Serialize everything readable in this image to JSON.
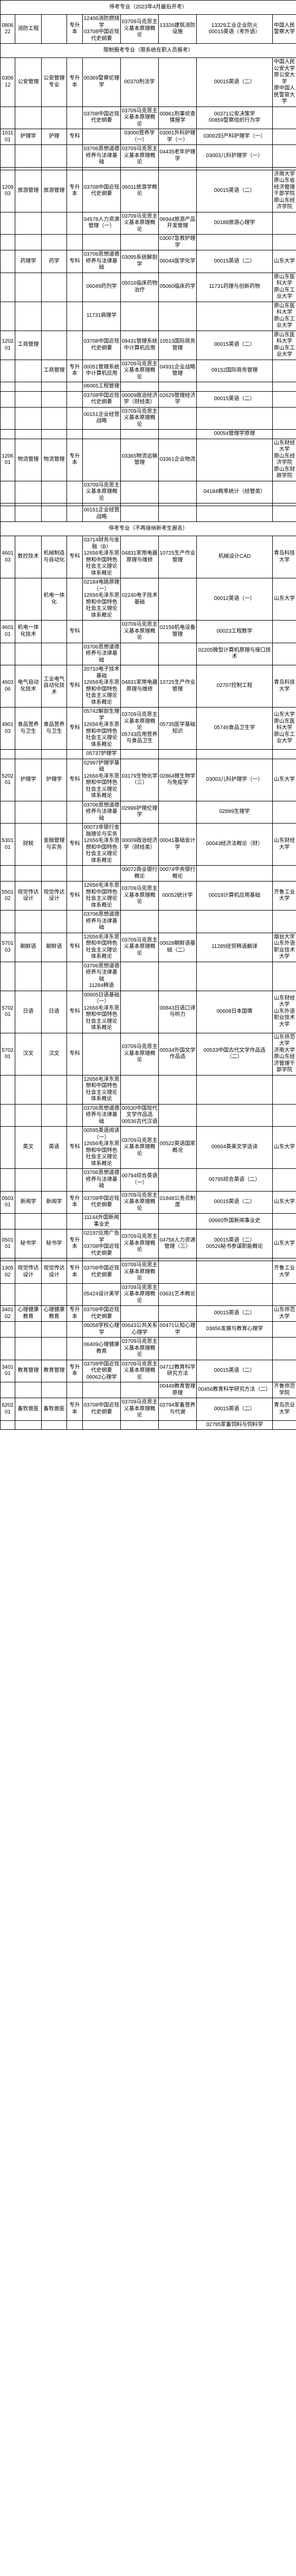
{
  "section1_title": "停考专业（2023年4月最后开考）",
  "section2_title": "限制报考专业（限系统在职人员报考）",
  "section3_title": "停考专业（不再接纳新考生报名）",
  "rows_a": [
    {
      "code": "080622",
      "name": "消防工程",
      "cat": "",
      "lvl": "专升本",
      "c4": "12406消防燃烧学\n03708中国近现代史纲要",
      "c5": "03709马克思主义基本原理概论",
      "c6": "13326建筑消防设施",
      "c7": "13329工业企业防火\n00015英语（考外语）",
      "school": "中国人民警察大学"
    }
  ],
  "rows_b": [
    {
      "code": "030612",
      "name": "公安管理",
      "cat": "公安管理专业",
      "lvl": "专升本",
      "c4": "00369警察伦理学",
      "c5": "00370刑法学",
      "c6": "",
      "c7": "00015英语（二）",
      "school": "中国人民公安大学\n原公安大学\n原中国人民警官大学"
    },
    {
      "code": "",
      "name": "",
      "cat": "",
      "lvl": "",
      "c4": "03708中国近现代史纲要",
      "c5": "03709马克思主义基本原理概论",
      "c6": "00861刑事侦查情报学",
      "c7": "00371公安决策学\n00859警察组织行为学",
      "school": ""
    },
    {
      "code": "101101",
      "name": "护理学",
      "cat": "护理",
      "lvl": "专科",
      "c4": "",
      "c5": "03000营养学（一）",
      "c6": "03001外科护理学（一）",
      "c7": "03002妇产科护理学（一）",
      "school": ""
    },
    {
      "code": "",
      "name": "",
      "cat": "",
      "lvl": "",
      "c4": "03706思想道德修养与法律基础",
      "c5": "03709马克思主义基本原理概论",
      "c6": "04435老年护理学",
      "c7": "03003儿科护理学（一）",
      "school": ""
    },
    {
      "code": "",
      "name": "",
      "cat": "",
      "lvl": "",
      "c4": "",
      "c5": "",
      "c6": "",
      "c7": "",
      "school": ""
    },
    {
      "code": "120903",
      "name": "旅游管理",
      "cat": "旅游管理",
      "lvl": "专升本",
      "c4": "03708中国近现代史纲要",
      "c5": "06011旅游学概论",
      "c6": "",
      "c7": "00015英语（二）",
      "school": "济南大学\n原山东省经济管理干部学院\n原山东经济学院"
    },
    {
      "code": "",
      "name": "",
      "cat": "",
      "lvl": "",
      "c4": "04578人力资源管理（一）",
      "c5": "03709马克思主义基本原理概论",
      "c6": "06944旅游产品开发管理",
      "c7": "00188旅游心理学",
      "school": ""
    },
    {
      "code": "",
      "name": "",
      "cat": "",
      "lvl": "",
      "c4": "",
      "c5": "",
      "c6": "03007急救护理学",
      "c7": "",
      "school": ""
    },
    {
      "code": "",
      "name": "药理学",
      "cat": "药学",
      "lvl": "专科",
      "c4": "03706思想道德修养与法律基础",
      "c5": "03095系统解剖学",
      "c6": "06044医学化学",
      "c7": "00015英语（二）",
      "school": "山东大学"
    },
    {
      "code": "",
      "name": "",
      "cat": "",
      "lvl": "",
      "c4": "06049药剂学",
      "c5": "05016临床药物治疗",
      "c6": "05060临床药学",
      "c7": "11731药理与创新药物",
      "school": "原山东医科大学\n原山东工业大学"
    },
    {
      "code": "",
      "name": "",
      "cat": "",
      "lvl": "",
      "c4": "11731病理学",
      "c5": "",
      "c6": "",
      "c7": "",
      "school": "原山东医科大学\n原山东工业大学"
    },
    {
      "code": "120201",
      "name": "工商管理",
      "cat": "",
      "lvl": "",
      "c4": "03708中国近现代史纲要",
      "c5": "09431管理系统中计算机应用",
      "c6": "10513国际商务管理",
      "c7": "00015英语（二）",
      "school": "原山东医科大学\n原山东工业大学"
    },
    {
      "code": "",
      "name": "",
      "cat": "工商管理",
      "lvl": "专升本",
      "c4": "00051管理系统中计算机应用",
      "c5": "03709马克思主义基本原理概论",
      "c6": "04931企业战略管理",
      "c7": "09152国际商务管理",
      "school": ""
    },
    {
      "code": "",
      "name": "",
      "cat": "",
      "lvl": "",
      "c4": "06065工程管理",
      "c5": "",
      "c6": "",
      "c7": "",
      "school": ""
    },
    {
      "code": "",
      "name": "",
      "cat": "",
      "lvl": "",
      "c4": "03708中国近现代史纲要",
      "c5": "00009政治经济学（财经类）",
      "c6": "02629管理经济学",
      "c7": "00015英语（二）",
      "school": ""
    },
    {
      "code": "",
      "name": "",
      "cat": "",
      "lvl": "",
      "c4": "00151企业经营战略",
      "c5": "03709马克思主义基本原理概论",
      "c6": "",
      "c7": "",
      "school": ""
    },
    {
      "code": "",
      "name": "",
      "cat": "",
      "lvl": "",
      "c4": "",
      "c5": "",
      "c6": "",
      "c7": "00054管理学原理",
      "school": ""
    },
    {
      "code": "120601",
      "name": "物流管理",
      "cat": "物流管理",
      "lvl": "专升本",
      "c4": "",
      "c5": "03365物流运输管理",
      "c6": "03361企业物流",
      "c7": "",
      "school": "山东财经大学\n原山东经济学院\n原山东财政学院"
    },
    {
      "code": "",
      "name": "",
      "cat": "",
      "lvl": "",
      "c4": "03709马克思主义基本原理概论",
      "c5": "",
      "c6": "",
      "c7": "04184概率统计（经管类）",
      "school": ""
    },
    {
      "code": "",
      "name": "",
      "cat": "",
      "lvl": "",
      "c4": "",
      "c5": "",
      "c6": "",
      "c7": "",
      "school": ""
    },
    {
      "code": "",
      "name": "",
      "cat": "",
      "lvl": "",
      "c4": "00151企业经营战略",
      "c5": "",
      "c6": "",
      "c7": "",
      "school": ""
    }
  ],
  "rows_c": [
    {
      "code": "460103",
      "name": "数控技术",
      "cat": "机械制造与自动化",
      "lvl": "专科",
      "c4": "03714财务与金融（B）\n12656毛泽东思想和中国特色社会主义理论体系概论",
      "c5": "04831家用电器原理与维修",
      "c6": "10725生产作业管理",
      "c7": "机械设计CAD",
      "school": "青岛科技大学"
    },
    {
      "code": "",
      "name": "",
      "cat": "机电一体化",
      "lvl": "",
      "c4": "02184电路原理（一）\n12656毛泽东思想和中国特色社会主义理论体系概论",
      "c5": "02240电子技术基础",
      "c6": "",
      "c7": "00012英语（一）",
      "school": "山东大学"
    },
    {
      "code": "460101",
      "name": "机电一体化技术",
      "cat": "",
      "lvl": "专科",
      "c4": "",
      "c5": "03709马克思主义基本原理概论",
      "c6": "02158机电设备管理",
      "c7": "00023工程数学",
      "school": ""
    },
    {
      "code": "",
      "name": "",
      "cat": "",
      "lvl": "",
      "c4": "03706思想道德修养与法律基础",
      "c5": "",
      "c6": "",
      "c7": "02205微型计算机原理与接口技术",
      "school": ""
    },
    {
      "code": "460306",
      "name": "电气自动化技术",
      "cat": "工业电气自动化技术",
      "lvl": "专科",
      "c4": "20710电子技术基础\n12656毛泽东思想和中国特色社会主义理论体系概论",
      "c5": "04831家用电器原理与维修",
      "c6": "10725生产作业管理",
      "c7": "02707控制工程",
      "school": "青岛科技大学"
    },
    {
      "code": "490103",
      "name": "食品营养与卫生",
      "cat": "食品营养与卫生",
      "lvl": "专科",
      "c4": "05742解剖生理学\n12656毛泽东思想和中国特色社会主义理论体系概论",
      "c5": "03709马克思主义基本原理概论\n05743应用营养与食品卫生",
      "c6": "05735医学基础知识",
      "c7": "05746食品卫生学",
      "school": "山东大学\n原山东医科大学\n原山东工业大学"
    },
    {
      "code": "",
      "name": "",
      "cat": "",
      "lvl": "",
      "c4": "05737护理学",
      "c5": "",
      "c6": "",
      "c7": "",
      "school": ""
    },
    {
      "code": "520201",
      "name": "护理学",
      "cat": "护理学",
      "lvl": "专科",
      "c4": "02997护理学基础\n12656毛泽东思想和中国特色社会主义理论体系概论",
      "c5": "03179生物化学（三）",
      "c6": "02864微生物学与免疫学",
      "c7": "03003儿科护理学（一）",
      "school": "山东大学"
    },
    {
      "code": "",
      "name": "",
      "cat": "",
      "lvl": "",
      "c4": "03706思想道德修养与法律基础",
      "c5": "02996护理伦理学",
      "c6": "",
      "c7": "02899生理学",
      "school": ""
    },
    {
      "code": "530101",
      "name": "财税",
      "cat": "金融管理与实务",
      "lvl": "专科",
      "c4": "00073非银行金融理论与实务\n12656毛泽东思想和中国特色社会主义理论体系概论",
      "c5": "00009政治经济学（财经类）",
      "c6": "00041基础会计学",
      "c7": "00043经济法概论（财）",
      "school": "山东财经大学"
    },
    {
      "code": "",
      "name": "",
      "cat": "",
      "lvl": "",
      "c4": "",
      "c5": "00072商业银行概论",
      "c6": "00074中央银行概论",
      "c7": "",
      "school": ""
    },
    {
      "code": "550102",
      "name": "视觉传达设计",
      "cat": "视觉传达设计",
      "lvl": "专科",
      "c4": "12656毛泽东思想和中国特色社会主义理论体系概论",
      "c5": "03709马克思主义基本原理概论",
      "c6": "00052统计学",
      "c7": "00018计算机应用基础",
      "school": "齐鲁工业大学"
    },
    {
      "code": "",
      "name": "",
      "cat": "",
      "lvl": "",
      "c4": "03706思想道德修养与法律基础",
      "c5": "",
      "c6": "",
      "c7": "",
      "school": ""
    },
    {
      "code": "570103",
      "name": "朝鲜语",
      "cat": "朝鲜语",
      "lvl": "专科",
      "c4": "12656毛泽东思想和中国特色社会主义理论体系概论",
      "c5": "03709马克思主义基本原理概论",
      "c6": "00628朝鲜语基础（二）",
      "c7": "11285经贸韩语翻译",
      "school": "烟台大学\n山东外语职业技术大学"
    },
    {
      "code": "",
      "name": "",
      "cat": "",
      "lvl": "",
      "c4": "03706思想道德修养与法律基础\n11284韩语",
      "c5": "",
      "c6": "",
      "c7": "",
      "school": ""
    },
    {
      "code": "570201",
      "name": "日语",
      "cat": "日语",
      "lvl": "专科",
      "c4": "00605日语基础（一）\n12656毛泽东思想和中国特色社会主义理论体系概论",
      "c5": "",
      "c6": "00843日语口译与听力",
      "c7": "00608日本国情",
      "school": "山东财经大学\n山东外语职业技术大学"
    },
    {
      "code": "570201",
      "name": "汉文",
      "cat": "汉文",
      "lvl": "专科",
      "c4": "",
      "c5": "03709马克思主义基本原理概论",
      "c6": "00534外国文学作品选",
      "c7": "00533中国古代文学作品选（二）",
      "school": "山东师范大学\n济南大学\n原山东经济管理干部学院"
    },
    {
      "code": "",
      "name": "",
      "cat": "",
      "lvl": "",
      "c4": "12656毛泽东思想和中国特色社会主义理论体系概论",
      "c5": "",
      "c6": "",
      "c7": "",
      "school": ""
    },
    {
      "code": "",
      "name": "",
      "cat": "",
      "lvl": "",
      "c4": "03706思想道德修养与法律基础",
      "c5": "00530中国现代文学作品选\n00536古代汉语",
      "c6": "",
      "c7": "",
      "school": ""
    },
    {
      "code": "",
      "name": "英文",
      "cat": "英语",
      "lvl": "专科",
      "c4": "00595英语阅读（一）\n12656毛泽东思想和中国特色社会主义理论体系概论",
      "c5": "03709马克思主义基本原理概论",
      "c6": "00522英语国家概况",
      "c7": "00604英美文学选读",
      "school": "山东大学"
    },
    {
      "code": "",
      "name": "",
      "cat": "",
      "lvl": "",
      "c4": "03706思想道德修养与法律基础",
      "c5": "00794综合英语（一）",
      "c6": "",
      "c7": "00795综合英语（二）",
      "school": ""
    },
    {
      "code": "050301",
      "name": "新闻学",
      "cat": "新闻学",
      "lvl": "专升本",
      "c4": "03708中国近现代史纲要",
      "c5": "03709马克思主义基本原理概论",
      "c6": "01848公务员制度",
      "c7": "00015英语（二）",
      "school": "山东大学"
    },
    {
      "code": "",
      "name": "",
      "cat": "",
      "lvl": "",
      "c4": "11144外国新闻事业史",
      "c5": "",
      "c6": "",
      "c7": "00660外国新闻事业史",
      "school": ""
    },
    {
      "code": "050101",
      "name": "秘书学",
      "cat": "秘书学",
      "lvl": "专升本",
      "c4": "02197应用广告学\n03708中国近现代史纲要",
      "c5": "03709马克思主义基本原理概论",
      "c6": "04758人力资源管理（三）",
      "c7": "00015英语（二）\n00526秘书参谋职能概论",
      "school": "山东大学"
    },
    {
      "code": "",
      "name": "",
      "cat": "",
      "lvl": "",
      "c4": "",
      "c5": "",
      "c6": "",
      "c7": "",
      "school": ""
    },
    {
      "code": "130502",
      "name": "视觉传达设计",
      "cat": "视觉传达设计",
      "lvl": "专升本",
      "c4": "03708中国近现代史纲要",
      "c5": "03709马克思主义基本原理概论",
      "c6": "",
      "c7": "",
      "school": "齐鲁工业大学"
    },
    {
      "code": "",
      "name": "",
      "cat": "",
      "lvl": "",
      "c4": "05424设计美学",
      "c5": "03709马克思主义基本原理概论",
      "c6": "03631艺术概论",
      "c7": "",
      "school": ""
    },
    {
      "code": "340102",
      "name": "心理健康教育",
      "cat": "心理健康教育",
      "lvl": "专升本",
      "c4": "03708中国近现代史纲要",
      "c5": "",
      "c6": "",
      "c7": "00015英语（二）",
      "school": "山东师范大学"
    },
    {
      "code": "",
      "name": "",
      "cat": "",
      "lvl": "",
      "c4": "06058学校心理学",
      "c5": "00643公共关系心理学",
      "c6": "00471认知心理学",
      "c7": "03656发展与教育心理学",
      "school": ""
    },
    {
      "code": "",
      "name": "",
      "cat": "",
      "lvl": "",
      "c4": "06409心理健康教育",
      "c5": "03709马克思主义基本原理概论",
      "c6": "",
      "c7": "",
      "school": ""
    },
    {
      "code": "340101",
      "name": "教育管理",
      "cat": "教育管理",
      "lvl": "专升本",
      "c4": "03708中国近现代史纲要\n06062心理学",
      "c5": "03709马克思主义基本原理概论",
      "c6": "04712教育科学研究方法",
      "c7": "00015英语（二）",
      "school": ""
    },
    {
      "code": "",
      "name": "",
      "cat": "",
      "lvl": "",
      "c4": "",
      "c5": "",
      "c6": "00449教育管理原理",
      "c7": "00456教育科学研究方法（二）",
      "school": "齐鲁师范学院"
    },
    {
      "code": "620201",
      "name": "畜牧兽医",
      "cat": "畜牧兽医",
      "lvl": "专升本",
      "c4": "03708中国近现代史纲要",
      "c5": "03709马克思主义基本原理概论",
      "c6": "02794家畜营养与代谢",
      "c7": "00015英语（二）",
      "school": "青岛农业大学"
    },
    {
      "code": "",
      "name": "",
      "cat": "",
      "lvl": "",
      "c4": "",
      "c5": "",
      "c6": "",
      "c7": "02795家畜饲料与饲料学",
      "school": ""
    }
  ],
  "col_widths": [
    "28",
    "50",
    "48",
    "30",
    "72",
    "72",
    "72",
    "72",
    "72",
    "45"
  ]
}
